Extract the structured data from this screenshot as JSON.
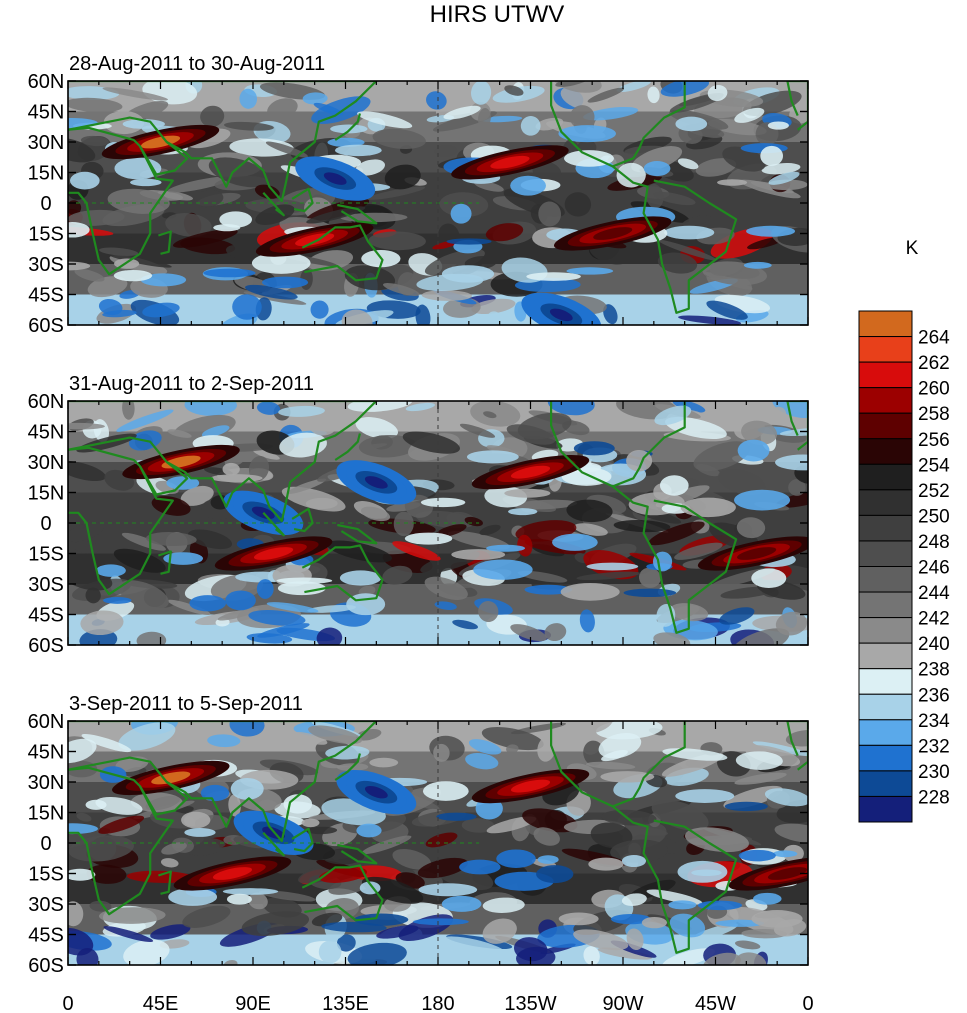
{
  "chart_data": {
    "type": "heatmap",
    "title": "HIRS UTWV",
    "units_label": "K",
    "panels": [
      {
        "label": "28-Aug-2011 to 30-Aug-2011",
        "features": [
          {
            "kind": "warm",
            "lon": 45,
            "lat": 30,
            "strength": 1.0
          },
          {
            "kind": "warm",
            "lon": 120,
            "lat": -18,
            "strength": 0.9
          },
          {
            "kind": "warm",
            "lon": 215,
            "lat": 20,
            "strength": 0.9
          },
          {
            "kind": "warm",
            "lon": 265,
            "lat": -15,
            "strength": 0.8
          },
          {
            "kind": "cold",
            "lon": 130,
            "lat": 12,
            "strength": 0.9
          },
          {
            "kind": "cold",
            "lon": 240,
            "lat": -55,
            "strength": 0.8
          }
        ]
      },
      {
        "label": "31-Aug-2011 to 2-Sep-2011",
        "features": [
          {
            "kind": "warm",
            "lon": 55,
            "lat": 30,
            "strength": 1.0
          },
          {
            "kind": "warm",
            "lon": 100,
            "lat": -15,
            "strength": 0.9
          },
          {
            "kind": "warm",
            "lon": 335,
            "lat": -15,
            "strength": 0.8
          },
          {
            "kind": "warm",
            "lon": 225,
            "lat": 25,
            "strength": 0.9
          },
          {
            "kind": "cold",
            "lon": 95,
            "lat": 5,
            "strength": 1.0
          },
          {
            "kind": "cold",
            "lon": 150,
            "lat": 20,
            "strength": 0.9
          }
        ]
      },
      {
        "label": "3-Sep-2011 to 5-Sep-2011",
        "features": [
          {
            "kind": "warm",
            "lon": 50,
            "lat": 32,
            "strength": 1.0
          },
          {
            "kind": "warm",
            "lon": 80,
            "lat": -15,
            "strength": 0.9
          },
          {
            "kind": "warm",
            "lon": 225,
            "lat": 28,
            "strength": 0.9
          },
          {
            "kind": "warm",
            "lon": 350,
            "lat": -15,
            "strength": 0.8
          },
          {
            "kind": "cold",
            "lon": 150,
            "lat": 25,
            "strength": 1.0
          },
          {
            "kind": "cold",
            "lon": 100,
            "lat": 5,
            "strength": 0.8
          }
        ]
      }
    ],
    "y_ticks": [
      "60N",
      "45N",
      "30N",
      "15N",
      "0",
      "15S",
      "30S",
      "45S",
      "60S"
    ],
    "y_range": [
      -60,
      60
    ],
    "x_ticks": [
      "0",
      "45E",
      "90E",
      "135E",
      "180",
      "135W",
      "90W",
      "45W",
      "0"
    ],
    "x_range": [
      0,
      360
    ],
    "colorbar": {
      "levels": [
        "264",
        "262",
        "260",
        "258",
        "256",
        "254",
        "252",
        "250",
        "248",
        "246",
        "244",
        "242",
        "240",
        "238",
        "236",
        "234",
        "232",
        "230",
        "228"
      ],
      "colors": [
        "#d2691e",
        "#e8401a",
        "#d80c0c",
        "#9c0000",
        "#5e0000",
        "#2a0505",
        "#1f1f1f",
        "#303030",
        "#3f3f3f",
        "#4e4e4e",
        "#606060",
        "#747474",
        "#8a8a8a",
        "#a8a8a8",
        "#dcf0f4",
        "#a8d2e8",
        "#5aa9ea",
        "#1f72d0",
        "#0d4a96",
        "#141f7a"
      ]
    }
  }
}
